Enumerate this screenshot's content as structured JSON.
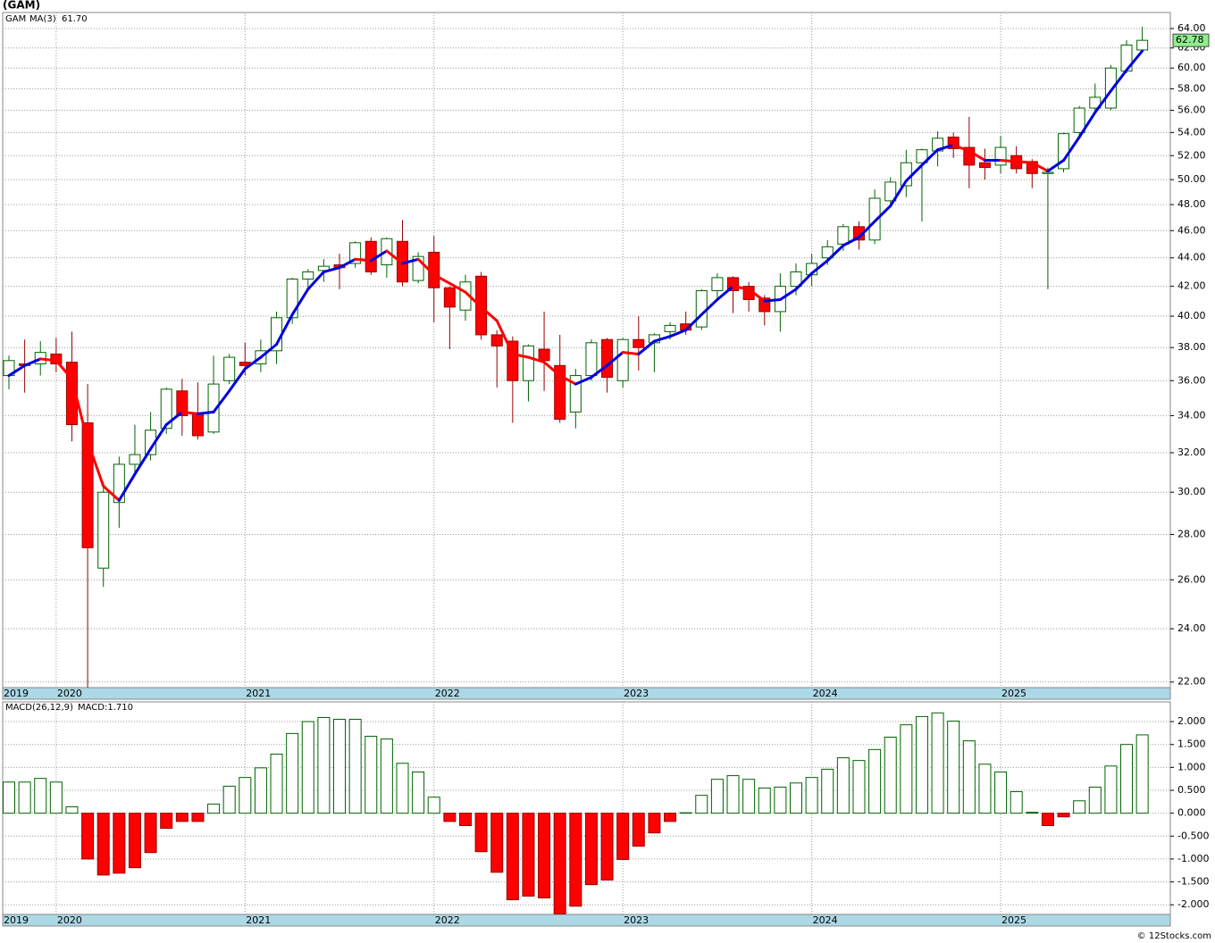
{
  "chart_data": [
    {
      "type": "candlestick",
      "title": "(GAM)",
      "symbol": "GAM",
      "ma_name": "MA(3)",
      "ma_label": "61.70",
      "log_scale": true,
      "grid": true,
      "up_color": "#006400",
      "down_color": "#ff0000",
      "ma_up_color": "#0000dd",
      "ma_down_color": "#ff0000",
      "categories": [
        "2019",
        null,
        null,
        "2020",
        null,
        null,
        null,
        null,
        null,
        null,
        null,
        null,
        null,
        null,
        null,
        "2021",
        null,
        null,
        null,
        null,
        null,
        null,
        null,
        null,
        null,
        null,
        null,
        "2022",
        null,
        null,
        null,
        null,
        null,
        null,
        null,
        null,
        null,
        null,
        null,
        "2023",
        null,
        null,
        null,
        null,
        null,
        null,
        null,
        null,
        null,
        null,
        null,
        "2024",
        null,
        null,
        null,
        null,
        null,
        null,
        null,
        null,
        null,
        null,
        null,
        "2025",
        null,
        null,
        null,
        null,
        null,
        null,
        null,
        null,
        null
      ],
      "open": [
        36.3,
        37.0,
        37.0,
        37.6,
        37.1,
        33.6,
        26.5,
        29.5,
        31.4,
        31.9,
        33.3,
        35.4,
        34.1,
        33.1,
        36.0,
        37.1,
        37.0,
        37.8,
        39.9,
        42.5,
        43.1,
        43.5,
        43.6,
        45.2,
        43.5,
        45.2,
        42.4,
        44.4,
        41.9,
        40.4,
        42.7,
        38.8,
        38.4,
        36.0,
        37.9,
        36.9,
        34.2,
        36.3,
        38.5,
        36.0,
        38.5,
        38.3,
        39.0,
        39.5,
        39.3,
        41.7,
        42.6,
        42.0,
        41.2,
        40.3,
        42.0,
        42.8,
        44.0,
        45.0,
        46.3,
        45.3,
        48.3,
        49.5,
        51.4,
        52.4,
        53.6,
        52.7,
        51.4,
        51.2,
        52.0,
        51.5,
        50.5,
        50.9,
        54.0,
        56.2,
        56.2,
        59.7,
        61.8
      ],
      "high": [
        37.5,
        38.5,
        38.4,
        38.6,
        39.0,
        35.8,
        30.5,
        31.8,
        33.5,
        34.2,
        35.6,
        36.1,
        35.9,
        37.5,
        37.6,
        38.3,
        38.5,
        40.3,
        42.6,
        43.2,
        43.9,
        44.3,
        45.2,
        45.5,
        45.5,
        46.8,
        44.4,
        45.6,
        42.0,
        42.8,
        43.0,
        39.1,
        38.7,
        38.2,
        40.3,
        38.8,
        36.7,
        38.5,
        38.6,
        38.6,
        40.0,
        38.9,
        39.6,
        40.3,
        41.8,
        42.9,
        42.7,
        42.3,
        41.4,
        42.9,
        43.6,
        44.3,
        45.3,
        46.5,
        46.7,
        49.2,
        50.2,
        52.5,
        52.6,
        54.1,
        54.0,
        55.4,
        52.6,
        53.7,
        52.8,
        51.7,
        51.0,
        54.0,
        56.4,
        58.5,
        60.3,
        62.8,
        64.2
      ],
      "low": [
        35.5,
        35.3,
        36.3,
        36.5,
        32.6,
        21.8,
        25.7,
        28.3,
        30.8,
        31.6,
        33.0,
        32.9,
        32.7,
        33.0,
        35.8,
        36.3,
        36.5,
        37.0,
        39.5,
        41.8,
        42.3,
        41.8,
        43.3,
        42.8,
        42.6,
        42.0,
        42.2,
        39.6,
        37.9,
        39.7,
        38.5,
        35.6,
        33.6,
        34.8,
        35.4,
        33.6,
        33.3,
        36.0,
        35.3,
        35.6,
        36.6,
        36.5,
        38.5,
        38.8,
        39.1,
        41.2,
        40.2,
        40.3,
        39.4,
        39.0,
        41.4,
        42.0,
        43.5,
        44.5,
        44.6,
        45.0,
        47.8,
        48.6,
        46.7,
        51.1,
        51.8,
        49.3,
        50.0,
        50.5,
        50.5,
        49.3,
        41.8,
        50.6,
        53.5,
        56.0,
        56.0,
        59.5,
        61.7
      ],
      "close": [
        37.2,
        36.9,
        37.7,
        37.0,
        33.5,
        27.4,
        30.0,
        31.4,
        31.9,
        33.2,
        35.5,
        34.0,
        32.9,
        35.8,
        37.4,
        36.9,
        37.8,
        39.9,
        42.5,
        43.0,
        43.4,
        43.3,
        45.1,
        43.0,
        45.4,
        42.3,
        44.1,
        41.9,
        40.6,
        42.3,
        38.8,
        38.1,
        36.0,
        38.1,
        37.2,
        33.8,
        36.3,
        38.3,
        36.2,
        38.5,
        38.0,
        38.8,
        39.4,
        39.1,
        41.7,
        42.6,
        41.7,
        41.1,
        40.3,
        42.0,
        43.0,
        43.6,
        44.8,
        46.3,
        45.3,
        48.5,
        49.8,
        51.4,
        52.5,
        53.5,
        52.6,
        51.2,
        51.0,
        52.7,
        50.9,
        50.5,
        50.6,
        53.9,
        56.2,
        57.2,
        60.0,
        62.3,
        62.78
      ],
      "ma": [
        36.3,
        36.9,
        37.3,
        37.2,
        36.1,
        32.6,
        30.3,
        29.6,
        30.9,
        32.2,
        33.5,
        34.2,
        34.1,
        34.2,
        35.4,
        36.7,
        37.4,
        38.2,
        40.1,
        41.8,
        43.0,
        43.3,
        43.9,
        43.8,
        44.5,
        43.6,
        43.9,
        42.8,
        42.2,
        41.6,
        40.6,
        39.7,
        37.6,
        37.4,
        37.1,
        36.3,
        35.8,
        36.2,
        36.9,
        37.7,
        37.6,
        38.4,
        38.7,
        39.1,
        40.1,
        41.1,
        42.0,
        41.8,
        41.0,
        41.1,
        41.8,
        42.9,
        43.8,
        44.9,
        45.5,
        46.7,
        47.9,
        49.9,
        51.2,
        52.5,
        52.9,
        52.4,
        51.6,
        51.6,
        51.5,
        51.4,
        50.7,
        51.6,
        53.6,
        55.8,
        57.8,
        59.8,
        61.7
      ],
      "ylim": [
        21.8,
        65.7
      ],
      "yticks": [
        {
          "value": 22,
          "label": "22.00"
        },
        {
          "value": 24,
          "label": "24.00"
        },
        {
          "value": 26,
          "label": "26.00"
        },
        {
          "value": 28,
          "label": "28.00"
        },
        {
          "value": 30,
          "label": "30.00"
        },
        {
          "value": 32,
          "label": "32.00"
        },
        {
          "value": 34,
          "label": "34.00"
        },
        {
          "value": 36,
          "label": "36.00"
        },
        {
          "value": 38,
          "label": "38.00"
        },
        {
          "value": 40,
          "label": "40.00"
        },
        {
          "value": 42,
          "label": "42.00"
        },
        {
          "value": 44,
          "label": "44.00"
        },
        {
          "value": 46,
          "label": "46.00"
        },
        {
          "value": 48,
          "label": "48.00"
        },
        {
          "value": 50,
          "label": "50.00"
        },
        {
          "value": 52,
          "label": "52.00"
        },
        {
          "value": 54,
          "label": "54.00"
        },
        {
          "value": 56,
          "label": "56.00"
        },
        {
          "value": 58,
          "label": "58.00"
        },
        {
          "value": 60,
          "label": "60.00"
        },
        {
          "value": 62,
          "label": "62.00"
        },
        {
          "value": 64,
          "label": "64.00"
        }
      ]
    },
    {
      "type": "bar",
      "title": "MACD(26,12,9)",
      "value_label": "MACD:1.710",
      "grid": true,
      "up_color": "#006400",
      "down_color": "#ff0000",
      "categories": [
        "2019",
        null,
        null,
        "2020",
        null,
        null,
        null,
        null,
        null,
        null,
        null,
        null,
        null,
        null,
        null,
        "2021",
        null,
        null,
        null,
        null,
        null,
        null,
        null,
        null,
        null,
        null,
        null,
        "2022",
        null,
        null,
        null,
        null,
        null,
        null,
        null,
        null,
        null,
        null,
        null,
        "2023",
        null,
        null,
        null,
        null,
        null,
        null,
        null,
        null,
        null,
        null,
        null,
        "2024",
        null,
        null,
        null,
        null,
        null,
        null,
        null,
        null,
        null,
        null,
        null,
        "2025",
        null,
        null,
        null,
        null,
        null,
        null,
        null,
        null,
        null
      ],
      "values": [
        0.68,
        0.68,
        0.76,
        0.68,
        0.14,
        -1.0,
        -1.35,
        -1.31,
        -1.19,
        -0.86,
        -0.33,
        -0.18,
        -0.18,
        0.2,
        0.59,
        0.78,
        0.99,
        1.29,
        1.74,
        2.0,
        2.09,
        2.05,
        2.05,
        1.68,
        1.62,
        1.09,
        0.9,
        0.35,
        -0.18,
        -0.27,
        -0.84,
        -1.29,
        -1.89,
        -1.81,
        -1.85,
        -2.2,
        -2.03,
        -1.56,
        -1.46,
        -1.01,
        -0.72,
        -0.43,
        -0.18,
        0.01,
        0.39,
        0.74,
        0.82,
        0.74,
        0.55,
        0.57,
        0.66,
        0.78,
        0.96,
        1.21,
        1.15,
        1.39,
        1.66,
        1.93,
        2.11,
        2.19,
        2.01,
        1.58,
        1.07,
        0.9,
        0.47,
        0.02,
        -0.27,
        -0.08,
        0.27,
        0.57,
        1.03,
        1.5,
        1.71
      ],
      "ylim": [
        -2.21,
        2.43
      ],
      "yticks": [
        {
          "value": 2,
          "label": "2.000"
        },
        {
          "value": 1.5,
          "label": "1.500"
        },
        {
          "value": 1,
          "label": "1.000"
        },
        {
          "value": 0.5,
          "label": "0.500"
        },
        {
          "value": 0,
          "label": "0.000"
        },
        {
          "value": -0.5,
          "label": "-0.500"
        },
        {
          "value": -1,
          "label": "-1.000"
        },
        {
          "value": -1.5,
          "label": "-1.500"
        },
        {
          "value": -2,
          "label": "-2.000"
        }
      ]
    }
  ],
  "footer": "© 12Stocks.com"
}
